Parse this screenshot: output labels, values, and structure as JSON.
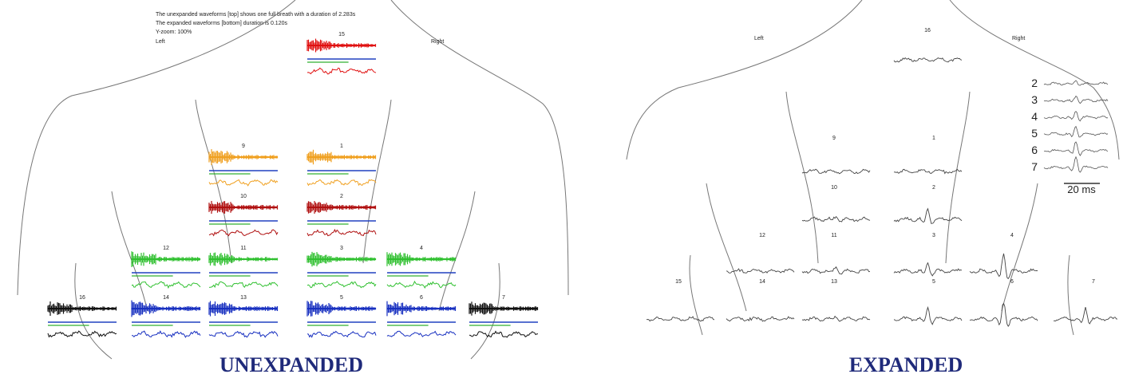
{
  "unexpanded": {
    "info": [
      "The unexpanded waveforms [top] shows one full breath with a duration of 2.283s",
      "The expanded waveforms [bottom] duration is 0.120s",
      "Y-zoom: 100%"
    ],
    "left": "Left",
    "right": "Right",
    "channels": [
      "15",
      "9",
      "1",
      "10",
      "2",
      "12",
      "11",
      "3",
      "4",
      "16",
      "14",
      "13",
      "5",
      "6",
      "7"
    ],
    "caption": "UNEXPANDED"
  },
  "expanded": {
    "left": "Left",
    "right": "Right",
    "channels": [
      "16",
      "9",
      "1",
      "10",
      "2",
      "12",
      "11",
      "3",
      "4",
      "15",
      "14",
      "13",
      "5",
      "6",
      "7"
    ],
    "inset_rows": [
      "2",
      "3",
      "4",
      "5",
      "6",
      "7"
    ],
    "scale": "20 ms",
    "caption": "EXPANDED"
  }
}
